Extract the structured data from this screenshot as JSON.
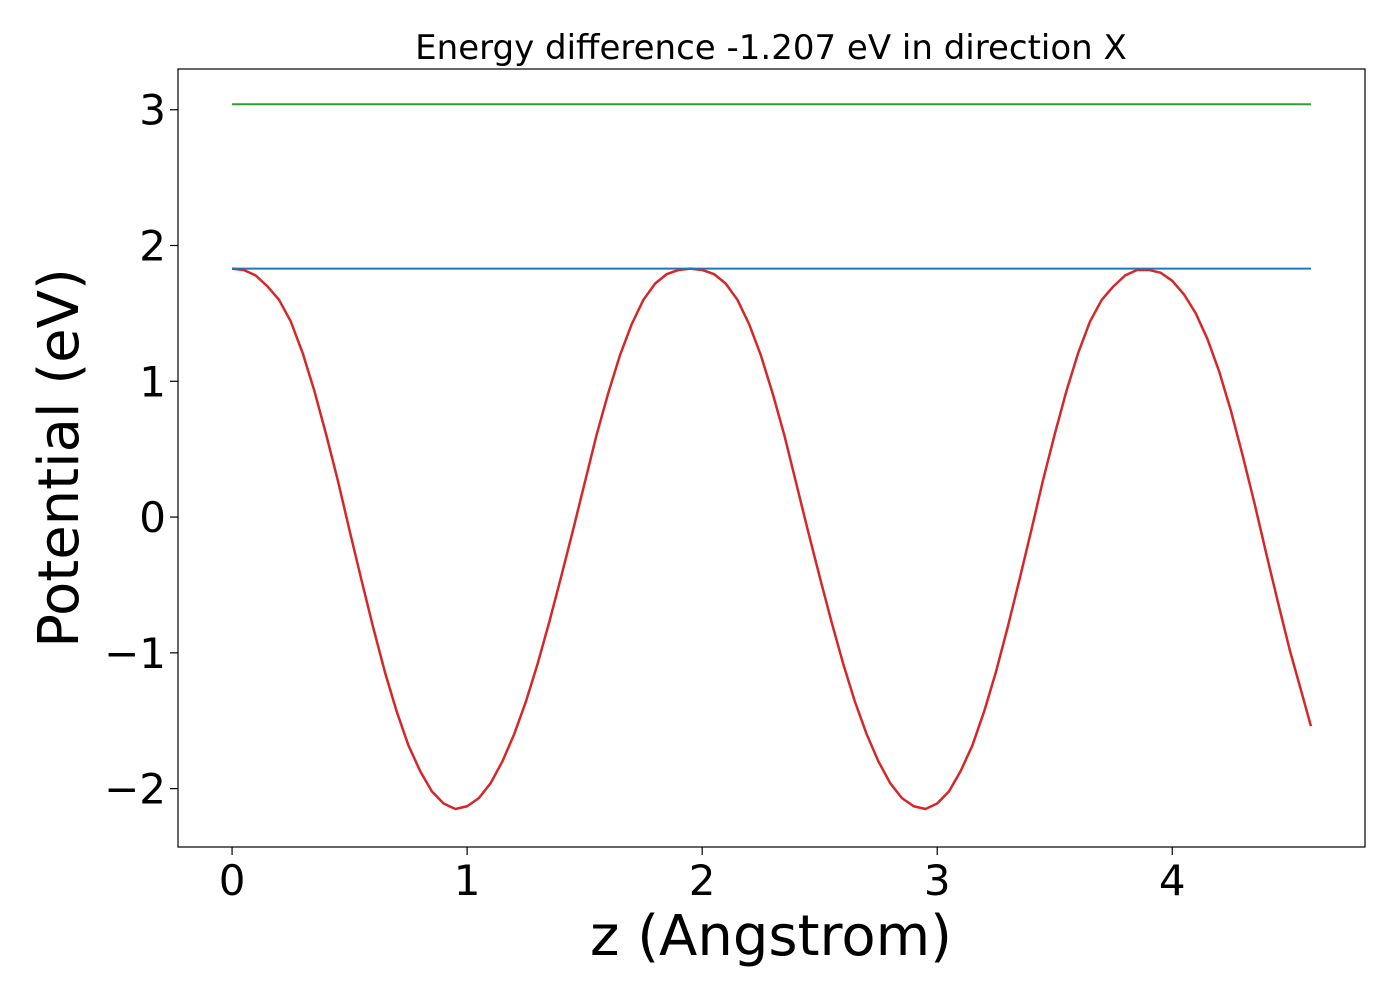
{
  "chart_data": {
    "type": "line",
    "title": "Energy difference -1.207 eV in direction X",
    "xlabel": "z (Angstrom)",
    "ylabel": "Potential (eV)",
    "xlim": [
      -0.23,
      4.82
    ],
    "ylim": [
      -2.43,
      3.3
    ],
    "xticks": [
      0,
      1,
      2,
      3,
      4
    ],
    "xtick_labels": [
      "0",
      "1",
      "2",
      "3",
      "4"
    ],
    "yticks": [
      -2,
      -1,
      0,
      1,
      2,
      3
    ],
    "ytick_labels": [
      "−2",
      "−1",
      "0",
      "1",
      "2",
      "3"
    ],
    "grid": false,
    "legend": "none",
    "series": [
      {
        "color": "#d62728",
        "x": [
          0.0,
          0.05,
          0.1,
          0.15,
          0.2,
          0.25,
          0.3,
          0.35,
          0.4,
          0.45,
          0.5,
          0.55,
          0.6,
          0.65,
          0.7,
          0.75,
          0.8,
          0.85,
          0.9,
          0.95,
          1.0,
          1.05,
          1.1,
          1.15,
          1.2,
          1.25,
          1.3,
          1.35,
          1.4,
          1.45,
          1.5,
          1.55,
          1.6,
          1.65,
          1.7,
          1.75,
          1.8,
          1.85,
          1.9,
          1.95,
          2.0,
          2.05,
          2.1,
          2.15,
          2.2,
          2.25,
          2.3,
          2.35,
          2.4,
          2.45,
          2.5,
          2.55,
          2.6,
          2.65,
          2.7,
          2.75,
          2.8,
          2.85,
          2.9,
          2.95,
          3.0,
          3.05,
          3.1,
          3.15,
          3.2,
          3.25,
          3.3,
          3.35,
          3.4,
          3.45,
          3.5,
          3.55,
          3.6,
          3.65,
          3.7,
          3.75,
          3.8,
          3.85,
          3.9,
          3.95,
          4.0,
          4.05,
          4.1,
          4.15,
          4.2,
          4.25,
          4.3,
          4.35,
          4.4,
          4.45,
          4.5,
          4.55,
          4.59
        ],
        "y": [
          1.83,
          1.82,
          1.78,
          1.7,
          1.6,
          1.44,
          1.21,
          0.93,
          0.61,
          0.27,
          -0.1,
          -0.46,
          -0.81,
          -1.14,
          -1.43,
          -1.68,
          -1.87,
          -2.02,
          -2.11,
          -2.15,
          -2.13,
          -2.07,
          -1.96,
          -1.8,
          -1.6,
          -1.36,
          -1.08,
          -0.77,
          -0.44,
          -0.1,
          0.25,
          0.6,
          0.91,
          1.19,
          1.42,
          1.6,
          1.72,
          1.79,
          1.82,
          1.83,
          1.82,
          1.79,
          1.72,
          1.6,
          1.42,
          1.19,
          0.91,
          0.6,
          0.25,
          -0.1,
          -0.44,
          -0.77,
          -1.08,
          -1.36,
          -1.6,
          -1.8,
          -1.96,
          -2.07,
          -2.13,
          -2.15,
          -2.11,
          -2.02,
          -1.87,
          -1.68,
          -1.43,
          -1.14,
          -0.81,
          -0.46,
          -0.1,
          0.27,
          0.61,
          0.93,
          1.21,
          1.44,
          1.6,
          1.7,
          1.78,
          1.82,
          1.82,
          1.8,
          1.74,
          1.64,
          1.5,
          1.31,
          1.07,
          0.78,
          0.45,
          0.1,
          -0.27,
          -0.63,
          -0.98,
          -1.29,
          -1.54
        ]
      },
      {
        "color": "#1f77b4",
        "x": [
          0.0,
          4.59
        ],
        "y": [
          1.83,
          1.83
        ]
      },
      {
        "color": "#2ca02c",
        "x": [
          0.0,
          4.59
        ],
        "y": [
          3.04,
          3.04
        ]
      }
    ]
  }
}
